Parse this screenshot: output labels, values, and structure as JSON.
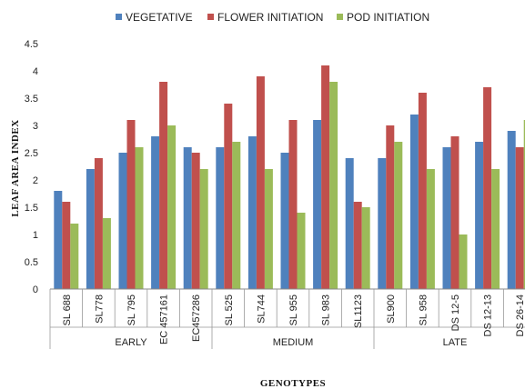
{
  "chart_data": {
    "type": "bar",
    "title": "",
    "xlabel": "GENOTYPES",
    "ylabel": "LEAF AREA INDEX",
    "ylim": [
      0,
      4.5
    ],
    "yticks": [
      "0",
      "0.5",
      "1",
      "1.5",
      "2",
      "2.5",
      "3",
      "3.5",
      "4",
      "4.5"
    ],
    "grid": false,
    "legend_position": "top",
    "categories": [
      "SL 688",
      "SL778",
      "SL 795",
      "EC 457161",
      "EC457286",
      "SL 525",
      "SL744",
      "SL 955",
      "SL 983",
      "SL1123",
      "SL900",
      "SL 958",
      "DS 12-5",
      "DS 12-13",
      "DS  26-14"
    ],
    "groups": [
      {
        "label": "EARLY",
        "count": 5
      },
      {
        "label": "MEDIUM",
        "count": 5
      },
      {
        "label": "LATE",
        "count": 5
      }
    ],
    "series": [
      {
        "name": "VEGETATIVE",
        "color": "#4f81bd",
        "values": [
          1.8,
          2.2,
          2.5,
          2.8,
          2.6,
          2.6,
          2.8,
          2.5,
          3.1,
          2.4,
          2.4,
          3.2,
          2.6,
          2.7,
          2.9
        ]
      },
      {
        "name": "FLOWER INITIATION",
        "color": "#c0504d",
        "values": [
          1.6,
          2.4,
          3.1,
          3.8,
          2.5,
          3.4,
          3.9,
          3.1,
          4.1,
          1.6,
          3.0,
          3.6,
          2.8,
          3.7,
          2.6
        ]
      },
      {
        "name": "POD INITIATION",
        "color": "#9bbb59",
        "values": [
          1.2,
          1.3,
          2.6,
          3.0,
          2.2,
          2.7,
          2.2,
          1.4,
          3.8,
          1.5,
          2.7,
          2.2,
          1.0,
          2.2,
          3.1
        ]
      }
    ]
  }
}
